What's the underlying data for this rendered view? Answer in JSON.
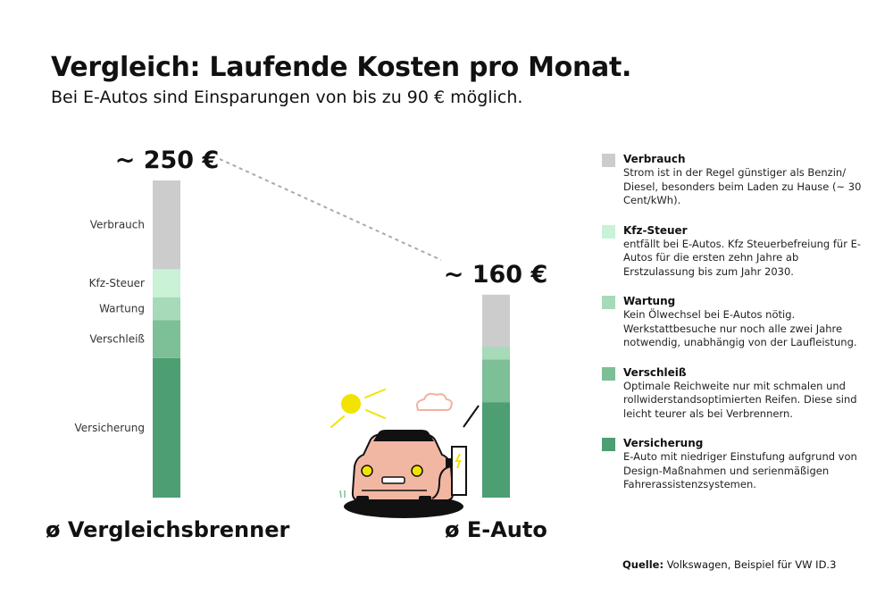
{
  "header": {
    "title": "Vergleich: Laufende Kosten pro Monat.",
    "subtitle": "Bei E-Autos sind Einsparungen von bis zu 90 € möglich."
  },
  "chart_data": {
    "type": "bar",
    "stacked": true,
    "categories": [
      "ø Vergleichsbrenner",
      "ø E-Auto"
    ],
    "totals_labels": [
      "~ 250 €",
      "~ 160 €"
    ],
    "totals": [
      250,
      160
    ],
    "series": [
      {
        "name": "Versicherung",
        "color": "#4d9e73",
        "values": [
          110,
          75
        ]
      },
      {
        "name": "Verschleiß",
        "color": "#7dbf96",
        "values": [
          30,
          34
        ]
      },
      {
        "name": "Wartung",
        "color": "#a6dab8",
        "values": [
          18,
          10
        ]
      },
      {
        "name": "Kfz-Steuer",
        "color": "#c9f2d6",
        "values": [
          22,
          0
        ]
      },
      {
        "name": "Verbrauch",
        "color": "#cccccc",
        "values": [
          70,
          41
        ]
      }
    ],
    "ylim": [
      0,
      250
    ],
    "grid": false,
    "legend": "right"
  },
  "legend": [
    {
      "title": "Verbrauch",
      "color": "#cccccc",
      "text": "Strom ist in der Regel günstiger als Benzin/ Diesel, besonders beim Laden zu Hause (~ 30 Cent/kWh)."
    },
    {
      "title": "Kfz-Steuer",
      "color": "#c9f2d6",
      "text": "entfällt bei E-Autos. Kfz Steuerbefreiung für E-Autos für die ersten zehn Jahre ab Erstzulassung bis zum Jahr 2030."
    },
    {
      "title": "Wartung",
      "color": "#a6dab8",
      "text": "Kein Ölwechsel bei  E-Autos nötig. Werkstattbesuche nur noch alle zwei Jahre notwendig, unabhängig von der Laufleistung."
    },
    {
      "title": "Verschleiß",
      "color": "#7dbf96",
      "text": "Optimale Reichweite nur mit schmalen und rollwiderstandsoptimierten Reifen. Diese sind leicht teurer als bei Verbrennern."
    },
    {
      "title": "Versicherung",
      "color": "#4d9e73",
      "text": "E-Auto mit niedriger Einstufung aufgrund von Design-Maßnahmen und serienmäßigen Fahrerassistenzsystemen."
    }
  ],
  "source": {
    "label": "Quelle:",
    "text": " Volkswagen, Beispiel für VW ID.3"
  },
  "icons": [
    "sun-icon",
    "cloud-icon",
    "electric-car-icon",
    "charging-station-icon"
  ]
}
